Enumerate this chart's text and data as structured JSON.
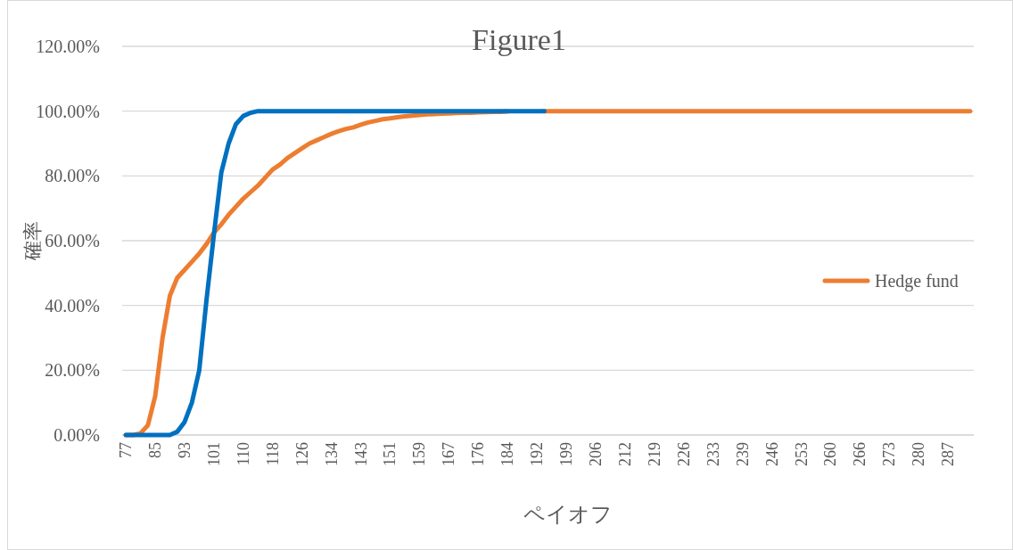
{
  "chart_data": {
    "type": "line",
    "title": "Figure1",
    "xlabel": "ペイオフ",
    "ylabel": "確率",
    "categories": [
      "77",
      null,
      null,
      null,
      "85",
      null,
      null,
      null,
      "93",
      null,
      null,
      null,
      "101",
      null,
      null,
      null,
      "110",
      null,
      null,
      null,
      "118",
      null,
      null,
      null,
      "126",
      null,
      null,
      null,
      "134",
      null,
      null,
      null,
      "143",
      null,
      null,
      null,
      "151",
      null,
      null,
      null,
      "159",
      null,
      null,
      null,
      "167",
      null,
      null,
      null,
      "176",
      null,
      null,
      null,
      "184",
      null,
      null,
      null,
      "192",
      null,
      null,
      null,
      "199",
      null,
      null,
      null,
      "206",
      null,
      null,
      null,
      "212",
      null,
      null,
      null,
      "219",
      null,
      null,
      null,
      "226",
      null,
      null,
      null,
      "233",
      null,
      null,
      null,
      "239",
      null,
      null,
      null,
      "246",
      null,
      null,
      null,
      "253",
      null,
      null,
      null,
      "260",
      null,
      null,
      null,
      "266",
      null,
      null,
      null,
      "273",
      null,
      null,
      null,
      "280",
      null,
      null,
      null,
      "287",
      null,
      null,
      null
    ],
    "series": [
      {
        "name": "Hedge fund",
        "color": "#ed7d31",
        "values": [
          0,
          0,
          0.5,
          3,
          12,
          30,
          43,
          48.5,
          51,
          53.5,
          56,
          59,
          62.5,
          65,
          68,
          70.5,
          73,
          75,
          77,
          79.5,
          82,
          83.5,
          85.5,
          87,
          88.5,
          90,
          91,
          92,
          93,
          93.8,
          94.5,
          95,
          95.8,
          96.5,
          97,
          97.5,
          97.8,
          98.1,
          98.4,
          98.6,
          98.8,
          99,
          99.1,
          99.2,
          99.3,
          99.4,
          99.5,
          99.5,
          99.6,
          99.7,
          99.8,
          99.8,
          99.9,
          null,
          null,
          null,
          null,
          100,
          100,
          100,
          100,
          100,
          100,
          100,
          100,
          100,
          100,
          100,
          100,
          100,
          100,
          100,
          100,
          100,
          100,
          100,
          100,
          100,
          100,
          100,
          100,
          100,
          100,
          100,
          100,
          100,
          100,
          100,
          100,
          100,
          100,
          100,
          100,
          100,
          100,
          100,
          100,
          100,
          100,
          100,
          100,
          100,
          100,
          100,
          100,
          100,
          100,
          100,
          100,
          100,
          100,
          100,
          100,
          100,
          100,
          100
        ]
      },
      {
        "color": "#0070c0",
        "values": [
          0,
          0,
          0,
          0,
          0,
          0,
          0,
          1,
          4,
          10,
          20,
          42,
          62,
          81,
          90,
          96,
          98.5,
          99.5,
          100,
          100,
          100,
          100,
          100,
          100,
          100,
          100,
          100,
          100,
          100,
          100,
          100,
          100,
          100,
          100,
          100,
          100,
          100,
          100,
          100,
          100,
          100,
          100,
          100,
          100,
          100,
          100,
          100,
          100,
          100,
          100,
          100,
          100,
          100,
          100,
          100,
          100,
          100,
          100,
          null,
          null,
          null,
          null,
          null,
          null,
          null,
          null,
          null,
          null,
          null,
          null,
          null,
          null,
          null,
          null,
          null,
          null,
          null,
          null,
          null,
          null,
          null,
          null,
          null,
          null,
          null,
          null,
          null,
          null,
          null,
          null,
          null,
          null,
          null,
          null,
          null,
          null,
          null,
          null,
          null,
          null,
          null,
          null,
          null,
          null,
          null,
          null,
          null,
          null,
          null,
          null,
          null,
          null,
          null,
          null,
          null,
          null
        ]
      }
    ],
    "ylim": [
      0,
      120
    ],
    "yticks": [
      {
        "value": 0,
        "label": "0.00%"
      },
      {
        "value": 20,
        "label": "20.00%"
      },
      {
        "value": 40,
        "label": "40.00%"
      },
      {
        "value": 60,
        "label": "60.00%"
      },
      {
        "value": 80,
        "label": "80.00%"
      },
      {
        "value": 100,
        "label": "100.00%"
      },
      {
        "value": 120,
        "label": "120.00%"
      }
    ],
    "grid": "y",
    "legend": "right"
  }
}
